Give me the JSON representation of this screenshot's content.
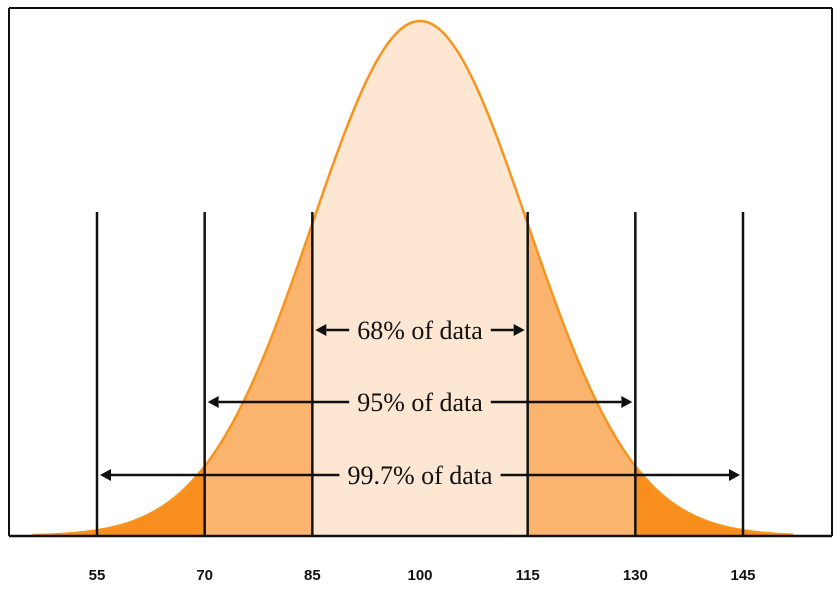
{
  "chart_data": {
    "type": "area",
    "title": "",
    "xlabel": "",
    "ylabel": "",
    "distribution": {
      "kind": "normal",
      "mean": 100,
      "sd": 15
    },
    "xlim": [
      46,
      152
    ],
    "x_ticks": [
      55,
      70,
      85,
      100,
      115,
      130,
      145
    ],
    "x_tick_labels": [
      "55",
      "70",
      "85",
      "100",
      "115",
      "130",
      "145"
    ],
    "boundaries": [
      55,
      70,
      85,
      115,
      130,
      145
    ],
    "intervals": [
      {
        "label": "68% of data",
        "from": 85,
        "to": 115
      },
      {
        "label": "95% of data",
        "from": 70,
        "to": 130
      },
      {
        "label": "99.7% of data",
        "from": 55,
        "to": 145
      }
    ],
    "regions": [
      {
        "from": 85,
        "to": 115,
        "color": "#fde6d2"
      },
      {
        "from": 70,
        "to": 85,
        "color": "#fbb46e"
      },
      {
        "from": 115,
        "to": 130,
        "color": "#fbb46e"
      },
      {
        "from": 46,
        "to": 70,
        "color": "#f78e1e"
      },
      {
        "from": 130,
        "to": 152,
        "color": "#f78e1e"
      }
    ],
    "colors": {
      "curve": "#f7941d",
      "axis": "#111111",
      "lines": "#111111"
    },
    "grid": false
  }
}
